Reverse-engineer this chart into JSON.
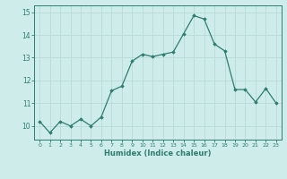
{
  "x": [
    0,
    1,
    2,
    3,
    4,
    5,
    6,
    7,
    8,
    9,
    10,
    11,
    12,
    13,
    14,
    15,
    16,
    17,
    18,
    19,
    20,
    21,
    22,
    23
  ],
  "y": [
    10.2,
    9.7,
    10.2,
    10.0,
    10.3,
    10.0,
    10.4,
    11.55,
    11.75,
    12.85,
    13.15,
    13.05,
    13.15,
    13.25,
    14.05,
    14.85,
    14.7,
    13.6,
    13.3,
    11.6,
    11.6,
    11.05,
    11.65,
    11.0
  ],
  "line_color": "#2e7d6e",
  "marker": "D",
  "marker_size": 1.8,
  "bg_color": "#ceecea",
  "grid_color": "#b8dbd8",
  "xlabel": "Humidex (Indice chaleur)",
  "xlim": [
    -0.5,
    23.5
  ],
  "ylim": [
    9.4,
    15.3
  ],
  "yticks": [
    10,
    11,
    12,
    13,
    14,
    15
  ],
  "xticks": [
    0,
    1,
    2,
    3,
    4,
    5,
    6,
    7,
    8,
    9,
    10,
    11,
    12,
    13,
    14,
    15,
    16,
    17,
    18,
    19,
    20,
    21,
    22,
    23
  ],
  "tick_color": "#2e7d6e",
  "label_color": "#2e7d6e",
  "spine_color": "#2e7d6e"
}
